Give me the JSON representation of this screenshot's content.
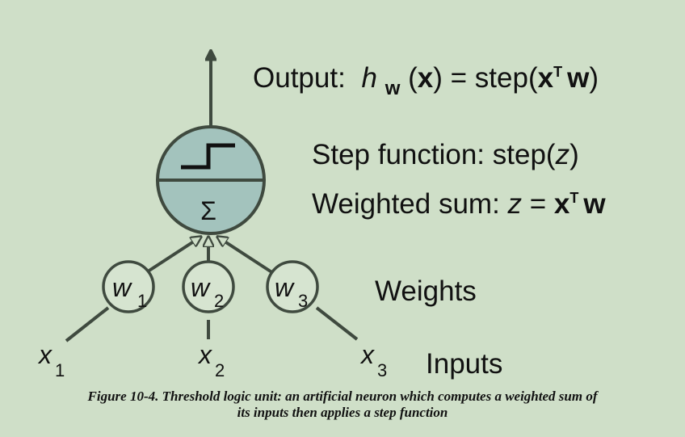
{
  "output": {
    "prefix": "Output:",
    "h": "h",
    "h_sub": "w",
    "x": "x",
    "mid": ") = step(",
    "x2": "x",
    "T": "T",
    "w": "w",
    "close": ")"
  },
  "step_function": {
    "text": "Step function: step(",
    "z": "z",
    "close": ")"
  },
  "weighted_sum": {
    "text": "Weighted sum: ",
    "z": "z",
    "eq": " = ",
    "x": "x",
    "T": "T",
    "w": "w"
  },
  "sigma": "Σ",
  "weights": [
    {
      "symbol": "w",
      "index": "1"
    },
    {
      "symbol": "w",
      "index": "2"
    },
    {
      "symbol": "w",
      "index": "3"
    }
  ],
  "inputs": [
    {
      "symbol": "x",
      "index": "1"
    },
    {
      "symbol": "x",
      "index": "2"
    },
    {
      "symbol": "x",
      "index": "3"
    }
  ],
  "weights_label": "Weights",
  "inputs_label": "Inputs",
  "caption": {
    "line1": "Figure 10-4. Threshold logic unit: an artificial neuron which computes a weighted sum of",
    "line2": "its inputs then applies a step function"
  },
  "colors": {
    "background": "#cfdfc8",
    "neuron_fill": "#a3c3bd",
    "stroke": "#3f4a3f",
    "weight_fill": "#d6e4d0"
  }
}
